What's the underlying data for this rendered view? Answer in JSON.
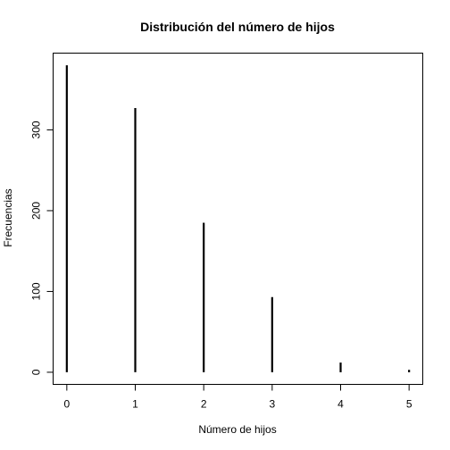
{
  "chart_data": {
    "type": "bar",
    "title": "Distribución del número de hijos",
    "xlabel": "Número de hijos",
    "ylabel": "Frecuencias",
    "categories": [
      "0",
      "1",
      "2",
      "3",
      "4",
      "5"
    ],
    "x": [
      0,
      1,
      2,
      3,
      4,
      5
    ],
    "values": [
      380,
      327,
      185,
      93,
      12,
      3
    ],
    "xlim": [
      -0.2,
      5.2
    ],
    "ylim": [
      -15,
      395
    ],
    "xticks": [
      0,
      1,
      2,
      3,
      4,
      5
    ],
    "yticks": [
      0,
      100,
      200,
      300
    ],
    "ytick_labels": [
      "0",
      "100",
      "200",
      "300"
    ],
    "grid": false,
    "legend": "none",
    "bar_color": "#000000"
  }
}
